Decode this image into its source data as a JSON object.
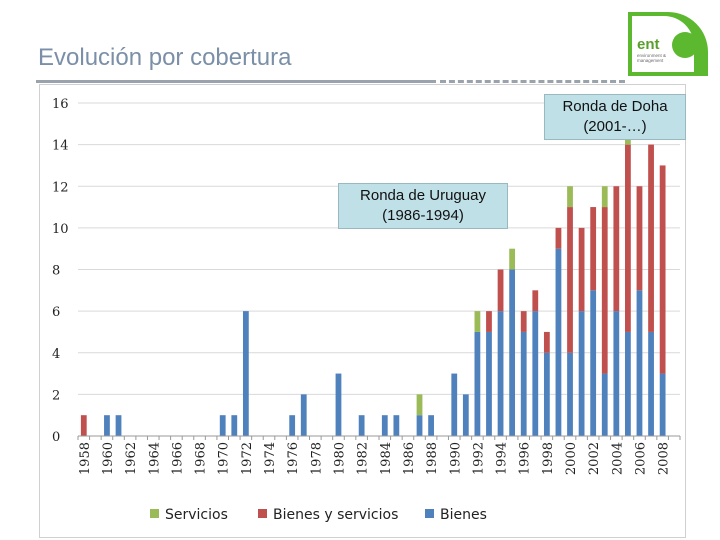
{
  "slide": {
    "title": "Evolución por cobertura"
  },
  "logo": {
    "name": "ent",
    "subtitle": "environment & management"
  },
  "annotations": [
    {
      "lines": [
        "Ronda de Doha",
        "(2001-…)"
      ]
    },
    {
      "lines": [
        "Ronda de Uruguay",
        "(1986-1994)"
      ]
    }
  ],
  "colors": {
    "servicios": "#9bbb59",
    "bienes_y_servicios": "#c0504d",
    "bienes": "#4f81bd",
    "gridline": "#d9d9d9"
  },
  "chart_data": {
    "type": "bar",
    "stacked": true,
    "years": [
      1958,
      1959,
      1960,
      1961,
      1962,
      1963,
      1964,
      1965,
      1966,
      1967,
      1968,
      1969,
      1970,
      1971,
      1972,
      1973,
      1974,
      1975,
      1976,
      1977,
      1978,
      1979,
      1980,
      1981,
      1982,
      1983,
      1984,
      1985,
      1986,
      1987,
      1988,
      1989,
      1990,
      1991,
      1992,
      1993,
      1994,
      1995,
      1996,
      1997,
      1998,
      1999,
      2000,
      2001,
      2002,
      2003,
      2004,
      2005,
      2006,
      2007,
      2008,
      2009
    ],
    "x_tick_labels": [
      "1958",
      "1960",
      "1962",
      "1964",
      "1966",
      "1968",
      "1970",
      "1972",
      "1974",
      "1976",
      "1978",
      "1980",
      "1982",
      "1984",
      "1986",
      "1988",
      "1990",
      "1992",
      "1994",
      "1996",
      "1998",
      "2000",
      "2002",
      "2004",
      "2006",
      "2008"
    ],
    "y_ticks": [
      "0",
      "2",
      "4",
      "6",
      "8",
      "10",
      "12",
      "14",
      "16"
    ],
    "ylim": [
      0,
      16
    ],
    "grid": true,
    "legend_position": "bottom",
    "series": [
      {
        "name": "Bienes",
        "key": "bienes",
        "values": [
          0,
          0,
          1,
          1,
          0,
          0,
          0,
          0,
          0,
          0,
          0,
          0,
          1,
          1,
          6,
          0,
          0,
          0,
          1,
          2,
          0,
          0,
          3,
          0,
          1,
          0,
          1,
          1,
          0,
          1,
          1,
          0,
          3,
          2,
          5,
          5,
          6,
          8,
          5,
          6,
          4,
          9,
          4,
          6,
          7,
          3,
          6,
          5,
          7,
          5,
          3,
          0
        ]
      },
      {
        "name": "Bienes y servicios",
        "key": "bienes_y_servicios",
        "values": [
          1,
          0,
          0,
          0,
          0,
          0,
          0,
          0,
          0,
          0,
          0,
          0,
          0,
          0,
          0,
          0,
          0,
          0,
          0,
          0,
          0,
          0,
          0,
          0,
          0,
          0,
          0,
          0,
          0,
          0,
          0,
          0,
          0,
          0,
          0,
          1,
          2,
          0,
          1,
          1,
          1,
          1,
          7,
          4,
          4,
          8,
          6,
          9,
          5,
          9,
          10,
          0
        ]
      },
      {
        "name": "Servicios",
        "key": "servicios",
        "values": [
          0,
          0,
          0,
          0,
          0,
          0,
          0,
          0,
          0,
          0,
          0,
          0,
          0,
          0,
          0,
          0,
          0,
          0,
          0,
          0,
          0,
          0,
          0,
          0,
          0,
          0,
          0,
          0,
          0,
          1,
          0,
          0,
          0,
          0,
          1,
          0,
          0,
          1,
          0,
          0,
          0,
          0,
          1,
          0,
          0,
          1,
          0,
          1,
          0,
          0,
          0,
          0
        ]
      }
    ]
  }
}
